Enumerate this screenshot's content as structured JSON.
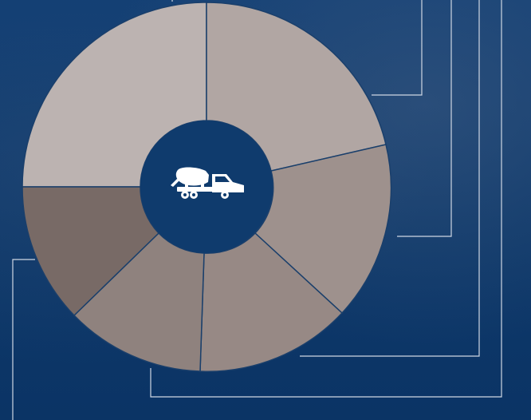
{
  "diagram": {
    "center_icon": "concrete-mixer-truck-icon",
    "segments": [
      {
        "id": "top-left",
        "color": "#bcb3b1"
      },
      {
        "id": "top-right",
        "color": "#b1a6a3"
      },
      {
        "id": "right",
        "color": "#9e918d"
      },
      {
        "id": "bottom-right",
        "color": "#978985"
      },
      {
        "id": "bottom",
        "color": "#8f827e"
      },
      {
        "id": "bottom-left",
        "color": "#887a76"
      },
      {
        "id": "left",
        "color": "#786a66"
      }
    ],
    "colors": {
      "background": "#0e3a6c",
      "hub": "#0f3b6d",
      "lines": "#cfd7e3",
      "separator": "#1a3f6b",
      "icon": "#ffffff"
    }
  }
}
